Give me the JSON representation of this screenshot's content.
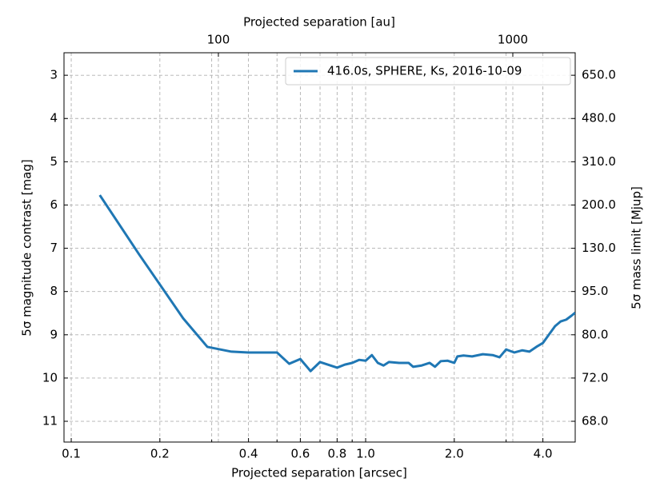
{
  "chart_data": {
    "type": "line",
    "xlabel": "Projected separation [arcsec]",
    "x2label": "Projected separation [au]",
    "ylabel": "5σ magnitude contrast [mag]",
    "y2label": "5σ mass limit [Mjup]",
    "xscale": "log",
    "xlim": [
      0.0945,
      5.15
    ],
    "xticks": [
      0.1,
      0.2,
      0.4,
      0.6,
      0.8,
      {
        "value": 1,
        "label": "1.0"
      },
      {
        "value": 2,
        "label": "2.0"
      },
      {
        "value": 4,
        "label": "4.0"
      }
    ],
    "xminorticks": [
      0.3,
      0.5,
      0.7,
      0.9,
      3
    ],
    "x2lim": [
      29.9,
      1629
    ],
    "x2ticks": [
      100,
      1000
    ],
    "ylim": [
      11.48,
      2.48
    ],
    "yticks": [
      3,
      4,
      5,
      6,
      7,
      8,
      9,
      10,
      11
    ],
    "y2ticks": [
      {
        "value": 650,
        "label": "650.0"
      },
      {
        "value": 480,
        "label": "480.0"
      },
      {
        "value": 310,
        "label": "310.0"
      },
      {
        "value": 200,
        "label": "200.0"
      },
      {
        "value": 130,
        "label": "130.0"
      },
      {
        "value": 95,
        "label": "95.0"
      },
      {
        "value": 80,
        "label": "80.0"
      },
      {
        "value": 72,
        "label": "72.0"
      },
      {
        "value": 68,
        "label": "68.0"
      }
    ],
    "grid": true,
    "legend": "upper right",
    "x": [
      0.125,
      0.17,
      0.24,
      0.29,
      0.35,
      0.4,
      0.5,
      0.55,
      0.6,
      0.65,
      0.7,
      0.8,
      0.85,
      0.9,
      0.95,
      1.0,
      1.05,
      1.1,
      1.15,
      1.2,
      1.3,
      1.4,
      1.45,
      1.55,
      1.65,
      1.72,
      1.8,
      1.9,
      2.0,
      2.05,
      2.15,
      2.3,
      2.5,
      2.7,
      2.85,
      3.0,
      3.2,
      3.4,
      3.6,
      3.8,
      4.0,
      4.2,
      4.4,
      4.6,
      4.8,
      5.0,
      5.15
    ],
    "series": [
      {
        "name": "416.0s, SPHERE, Ks, 2016-10-09",
        "color": "#1f77b4",
        "values": [
          5.77,
          7.14,
          8.62,
          9.28,
          9.39,
          9.41,
          9.41,
          9.67,
          9.56,
          9.84,
          9.63,
          9.76,
          9.69,
          9.65,
          9.58,
          9.6,
          9.47,
          9.65,
          9.71,
          9.63,
          9.65,
          9.65,
          9.74,
          9.71,
          9.65,
          9.74,
          9.61,
          9.6,
          9.65,
          9.5,
          9.48,
          9.5,
          9.45,
          9.47,
          9.52,
          9.34,
          9.41,
          9.36,
          9.39,
          9.28,
          9.19,
          8.99,
          8.8,
          8.69,
          8.65,
          8.56,
          8.49
        ]
      }
    ]
  }
}
